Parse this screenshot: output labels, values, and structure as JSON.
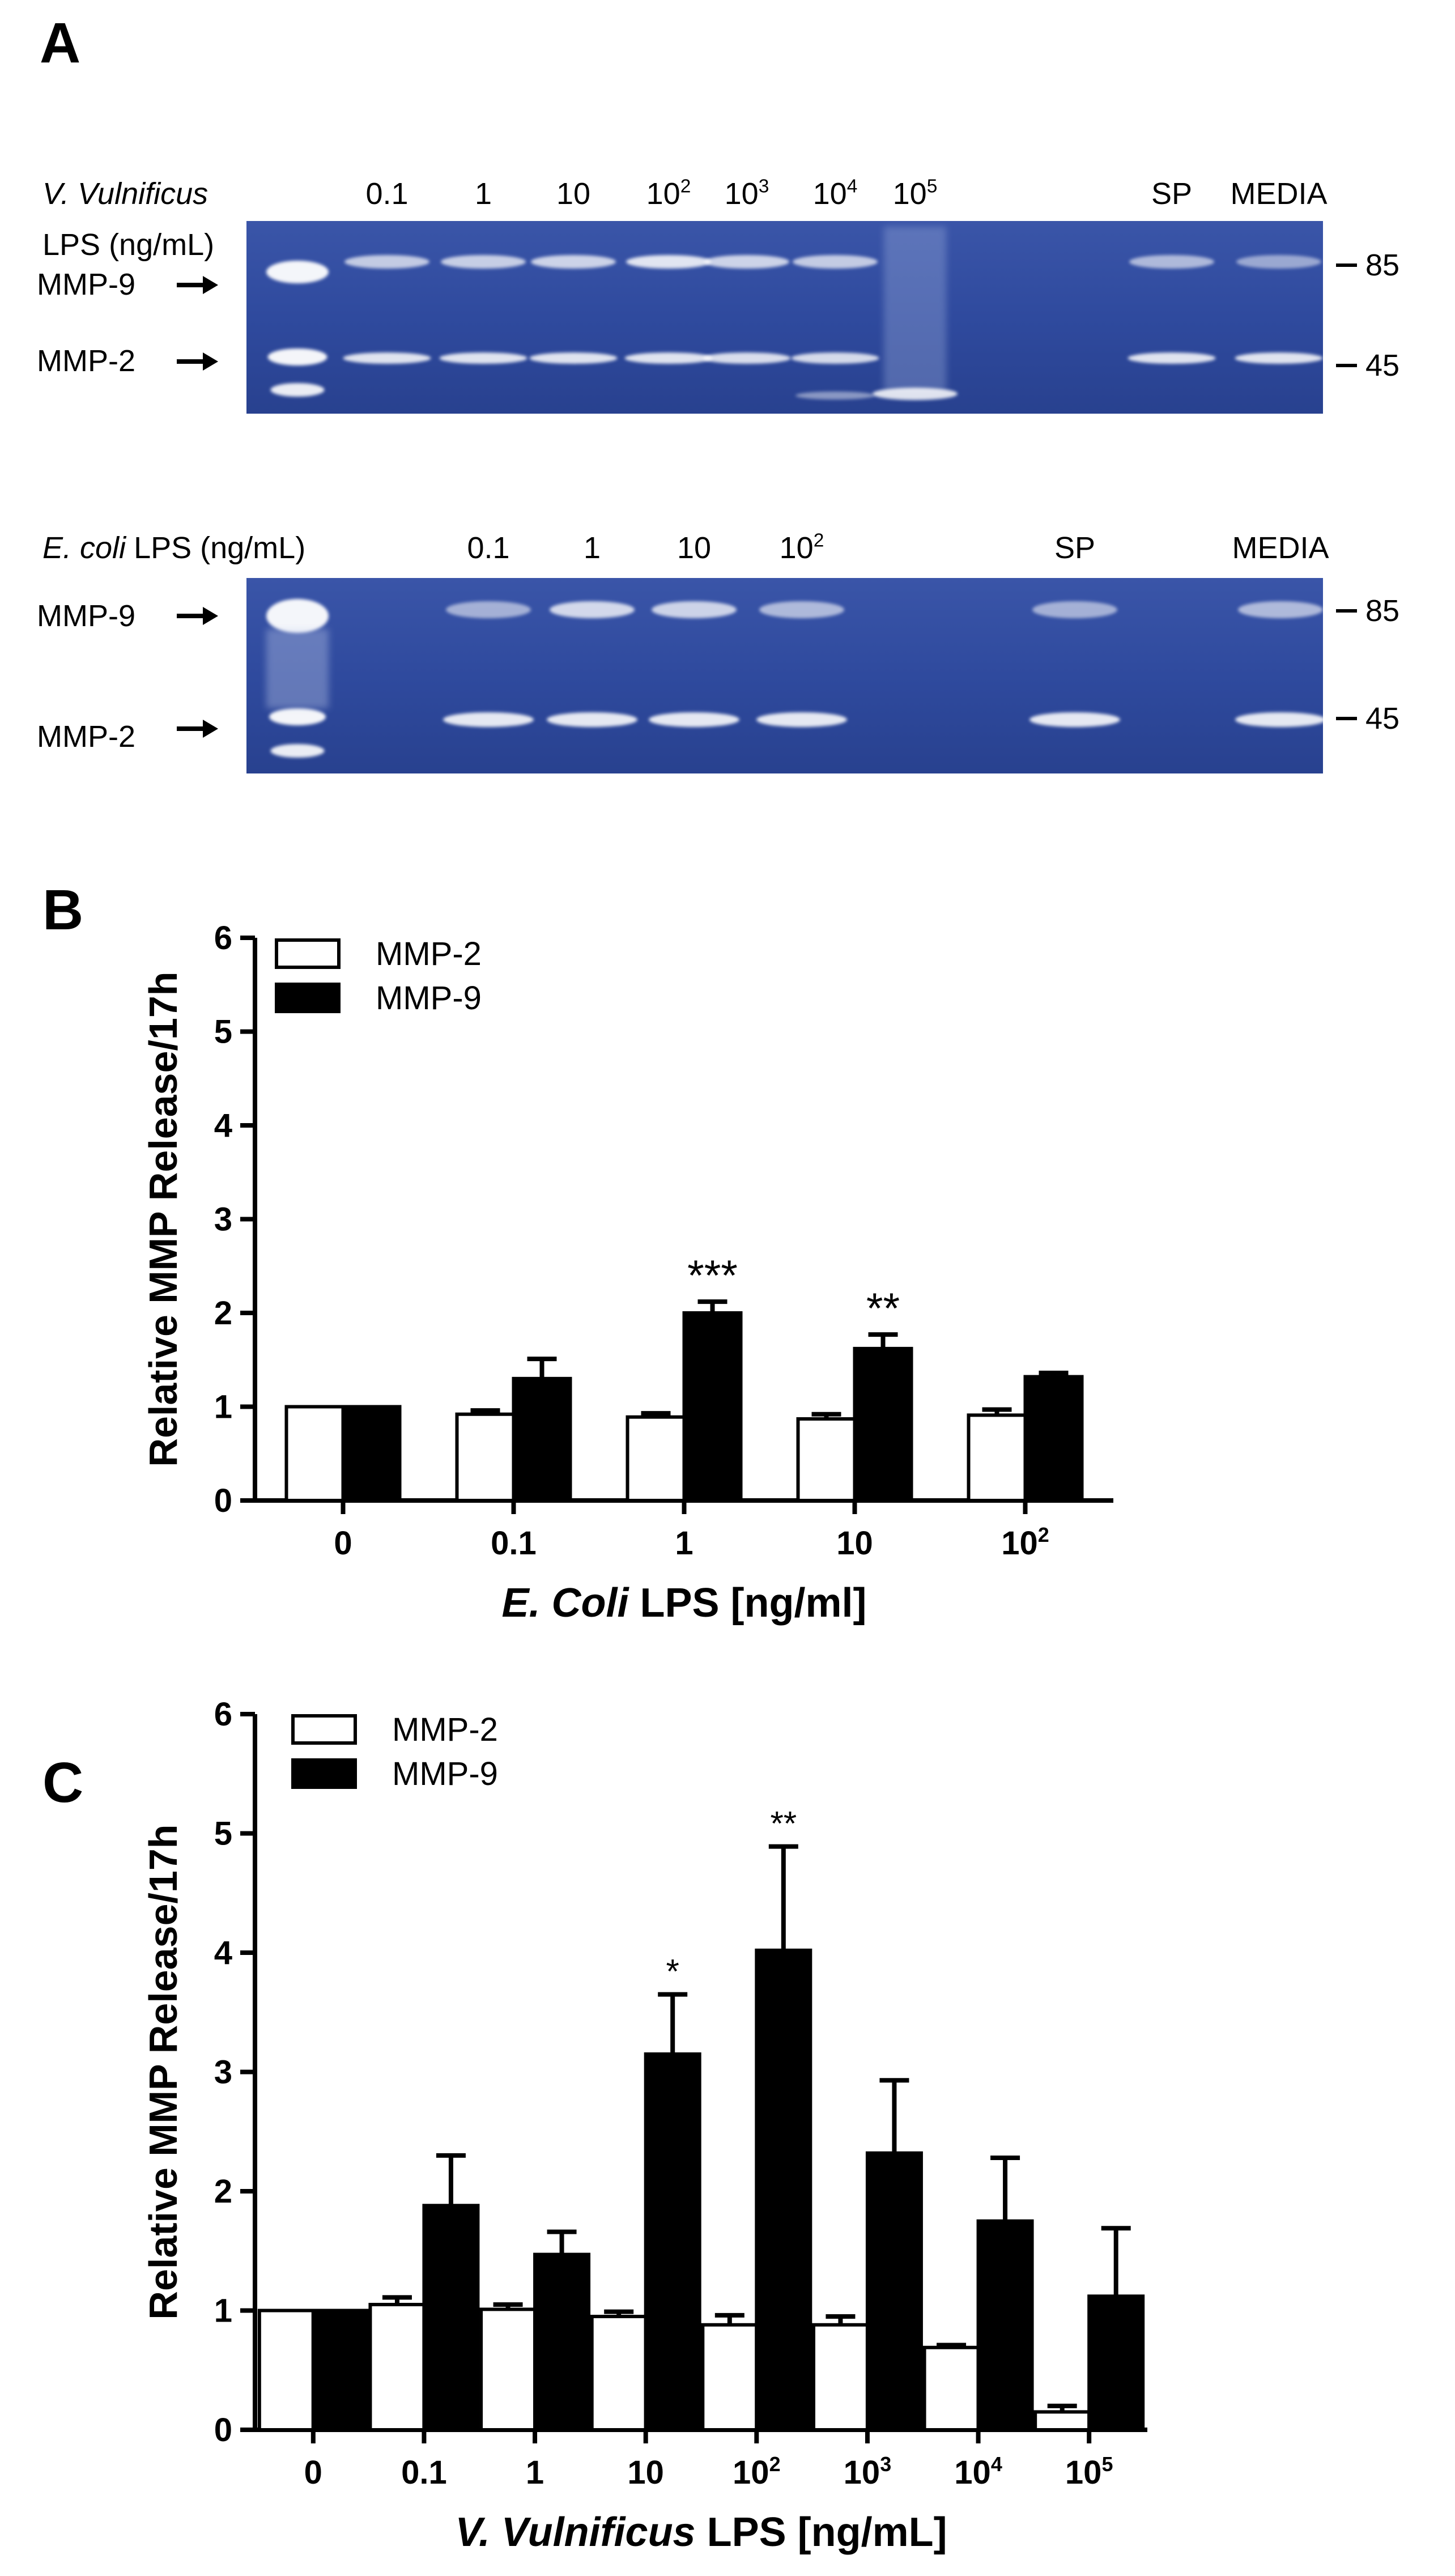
{
  "panel_a": {
    "panel_label": "A",
    "gel1": {
      "header_line1": "V. Vulnificus",
      "header_line2": "LPS (ng/mL)",
      "lanes": [
        {
          "base": "0.1",
          "sup": ""
        },
        {
          "base": "1",
          "sup": ""
        },
        {
          "base": "10",
          "sup": ""
        },
        {
          "base": "10",
          "sup": "2"
        },
        {
          "base": "10",
          "sup": "3"
        },
        {
          "base": "10",
          "sup": "4"
        },
        {
          "base": "10",
          "sup": "5"
        },
        {
          "base": "SP",
          "sup": ""
        },
        {
          "base": "MEDIA",
          "sup": ""
        }
      ],
      "left_labels": [
        "MMP-9",
        "MMP-2"
      ],
      "markers": [
        "85",
        "45"
      ]
    },
    "gel2": {
      "header_italic": "E. coli",
      "header_rest": "LPS (ng/mL)",
      "lanes": [
        {
          "base": "0.1",
          "sup": ""
        },
        {
          "base": "1",
          "sup": ""
        },
        {
          "base": "10",
          "sup": ""
        },
        {
          "base": "10",
          "sup": "2"
        },
        {
          "base": "SP",
          "sup": ""
        },
        {
          "base": "MEDIA",
          "sup": ""
        }
      ],
      "left_labels": [
        "MMP-9",
        "MMP-2"
      ],
      "markers": [
        "85",
        "45"
      ]
    },
    "gel_color": "#2f4a9e"
  },
  "chart_data": [
    {
      "panel_label": "B",
      "type": "bar",
      "categories": [
        {
          "base": "0",
          "sup": ""
        },
        {
          "base": "0.1",
          "sup": ""
        },
        {
          "base": "1",
          "sup": ""
        },
        {
          "base": "10",
          "sup": ""
        },
        {
          "base": "10",
          "sup": "2"
        }
      ],
      "series": [
        {
          "name": "MMP-2",
          "fill": "#ffffff",
          "values": [
            1.0,
            0.92,
            0.89,
            0.87,
            0.91
          ],
          "errors": [
            0,
            0.04,
            0.04,
            0.05,
            0.06
          ]
        },
        {
          "name": "MMP-9",
          "fill": "#000000",
          "values": [
            1.0,
            1.3,
            2.0,
            1.62,
            1.32
          ],
          "errors": [
            0,
            0.21,
            0.12,
            0.15,
            0.04
          ]
        }
      ],
      "significance": [
        "",
        "",
        "***",
        "**",
        ""
      ],
      "ylabel": "Relative MMP Release/17h",
      "xlabel_italic": "E. Coli",
      "xlabel_rest": " LPS [ng/ml]",
      "ylim": [
        0,
        6
      ],
      "yticks": [
        "0",
        "1",
        "2",
        "3",
        "4",
        "5",
        "6"
      ],
      "legend_position": "top-left"
    },
    {
      "panel_label": "C",
      "type": "bar",
      "categories": [
        {
          "base": "0",
          "sup": ""
        },
        {
          "base": "0.1",
          "sup": ""
        },
        {
          "base": "1",
          "sup": ""
        },
        {
          "base": "10",
          "sup": ""
        },
        {
          "base": "10",
          "sup": "2"
        },
        {
          "base": "10",
          "sup": "3"
        },
        {
          "base": "10",
          "sup": "4"
        },
        {
          "base": "10",
          "sup": "5"
        }
      ],
      "series": [
        {
          "name": "MMP-2",
          "fill": "#ffffff",
          "values": [
            1.0,
            1.05,
            1.01,
            0.95,
            0.88,
            0.88,
            0.69,
            0.15
          ],
          "errors": [
            0,
            0.06,
            0.04,
            0.04,
            0.08,
            0.07,
            0.02,
            0.05
          ]
        },
        {
          "name": "MMP-9",
          "fill": "#000000",
          "values": [
            1.0,
            1.88,
            1.47,
            3.15,
            4.02,
            2.32,
            1.75,
            1.12
          ],
          "errors": [
            0,
            0.42,
            0.19,
            0.5,
            0.87,
            0.61,
            0.53,
            0.57
          ]
        }
      ],
      "significance": [
        "",
        "",
        "",
        "*",
        "**",
        "",
        "",
        ""
      ],
      "ylabel": "Relative MMP Release/17h",
      "xlabel_italic": "V. Vulnificus",
      "xlabel_rest": " LPS [ng/mL]",
      "ylim": [
        0,
        6
      ],
      "yticks": [
        "0",
        "1",
        "2",
        "3",
        "4",
        "5",
        "6"
      ],
      "legend_position": "top-left"
    }
  ]
}
